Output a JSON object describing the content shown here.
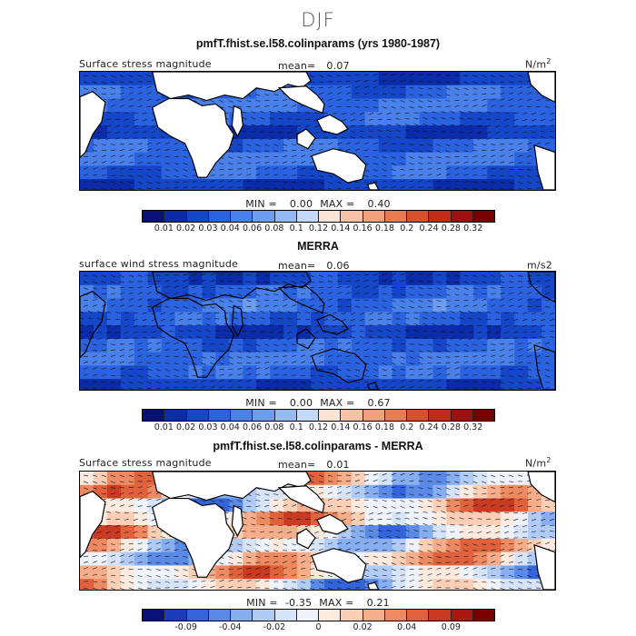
{
  "figure": {
    "season": "DJF"
  },
  "panels": [
    {
      "title": "pmfT.fhist.se.l58.colinparams (yrs 1980-1987)",
      "variable": "Surface stress magnitude",
      "mean_label": "mean=",
      "mean_value": "0.07",
      "units": "N/m",
      "units_sup": "2",
      "min_label": "MIN =",
      "min_value": "0.00",
      "max_label": "MAX =",
      "max_value": "0.40",
      "colorbar_ticks": [
        "0.01",
        "0.02",
        "0.03",
        "0.04",
        "0.06",
        "0.08",
        "0.1",
        "0.12",
        "0.14",
        "0.16",
        "0.18",
        "0.2",
        "0.24",
        "0.28",
        "0.32"
      ],
      "colorbar_colors": [
        "#08107a",
        "#0b2ba8",
        "#1546c8",
        "#2a62e0",
        "#4a80ea",
        "#6c9cf0",
        "#94baf5",
        "#c4d8fa",
        "#fbe4d6",
        "#f8c2a6",
        "#f3a07c",
        "#e97a52",
        "#d9502e",
        "#c22a1a",
        "#a01010",
        "#7a0000"
      ],
      "field_style": "model"
    },
    {
      "title": "MERRA",
      "variable": "surface wind stress magnitude",
      "mean_label": "mean=",
      "mean_value": "0.06",
      "units": "m/s2",
      "units_sup": "",
      "min_label": "MIN =",
      "min_value": "0.00",
      "max_label": "MAX =",
      "max_value": "0.67",
      "colorbar_ticks": [
        "0.01",
        "0.02",
        "0.03",
        "0.04",
        "0.06",
        "0.08",
        "0.1",
        "0.12",
        "0.14",
        "0.16",
        "0.18",
        "0.2",
        "0.24",
        "0.28",
        "0.32"
      ],
      "colorbar_colors": [
        "#08107a",
        "#0b2ba8",
        "#1546c8",
        "#2a62e0",
        "#4a80ea",
        "#6c9cf0",
        "#94baf5",
        "#c4d8fa",
        "#fbe4d6",
        "#f8c2a6",
        "#f3a07c",
        "#e97a52",
        "#d9502e",
        "#c22a1a",
        "#a01010",
        "#7a0000"
      ],
      "field_style": "obs"
    },
    {
      "title": "pmfT.fhist.se.l58.colinparams - MERRA",
      "variable": "Surface stress magnitude",
      "mean_label": "mean=",
      "mean_value": "0.01",
      "units": "N/m",
      "units_sup": "2",
      "min_label": "MIN =",
      "min_value": "-0.35",
      "max_label": "MAX =",
      "max_value": "0.21",
      "colorbar_ticks": [
        "",
        "-0.09",
        "",
        "-0.04",
        "",
        "-0.02",
        "",
        "0",
        "",
        "0.02",
        "",
        "0.04",
        "",
        "0.09",
        ""
      ],
      "colorbar_colors": [
        "#08107a",
        "#1a3cb8",
        "#3364d8",
        "#5a8ae6",
        "#86aef0",
        "#b0cbf6",
        "#d6e4fa",
        "#eef3fc",
        "#fdebe0",
        "#fbcfb6",
        "#f6ad8a",
        "#ee8a62",
        "#e0623c",
        "#c83a22",
        "#a8180f",
        "#7a0000"
      ],
      "field_style": "diff"
    }
  ]
}
